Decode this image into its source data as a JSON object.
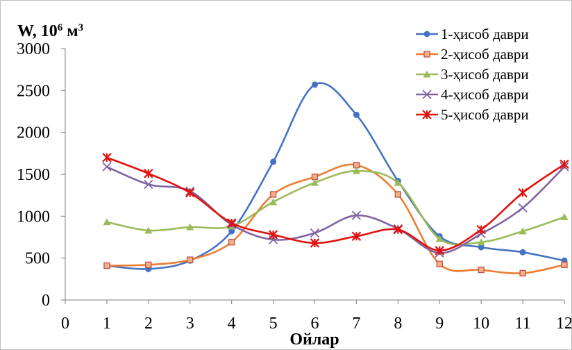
{
  "chart_data": {
    "type": "line",
    "title": "",
    "ylabel": "W, 10",
    "ylabel_sup": "6",
    "ylabel_unit": " м",
    "ylabel_unit_sup": "3",
    "xlabel": "Ойлар",
    "xlim": [
      0,
      12
    ],
    "ylim": [
      0,
      3000
    ],
    "x_ticks": [
      0,
      1,
      2,
      3,
      4,
      5,
      6,
      7,
      8,
      9,
      10,
      11,
      12
    ],
    "y_ticks": [
      0,
      500,
      1000,
      1500,
      2000,
      2500,
      3000
    ],
    "x": [
      1,
      2,
      3,
      4,
      5,
      6,
      7,
      8,
      9,
      10,
      11,
      12
    ],
    "grid": false,
    "legend_position": "top-right",
    "smooth": true,
    "series": [
      {
        "name": "1-ҳисоб даври",
        "color": "#4472C4",
        "marker": "circle",
        "values": [
          410,
          370,
          470,
          820,
          1650,
          2570,
          2210,
          1420,
          760,
          630,
          570,
          470
        ]
      },
      {
        "name": "2-ҳисоб даври",
        "color": "#ED7D31",
        "marker": "square",
        "values": [
          410,
          420,
          480,
          690,
          1260,
          1470,
          1610,
          1260,
          430,
          360,
          320,
          420
        ]
      },
      {
        "name": "3-ҳисоб даври",
        "color": "#9BBB59",
        "marker": "triangle",
        "values": [
          930,
          830,
          870,
          880,
          1170,
          1400,
          1540,
          1400,
          730,
          690,
          820,
          990
        ]
      },
      {
        "name": "4-ҳисоб даври",
        "color": "#8064A2",
        "marker": "x",
        "values": [
          1590,
          1380,
          1300,
          900,
          720,
          800,
          1010,
          850,
          560,
          790,
          1100,
          1590
        ]
      },
      {
        "name": "5-ҳисоб даври",
        "color": "#E0120F",
        "marker": "star",
        "values": [
          1700,
          1510,
          1280,
          920,
          780,
          680,
          760,
          840,
          590,
          840,
          1280,
          1620
        ]
      }
    ]
  }
}
